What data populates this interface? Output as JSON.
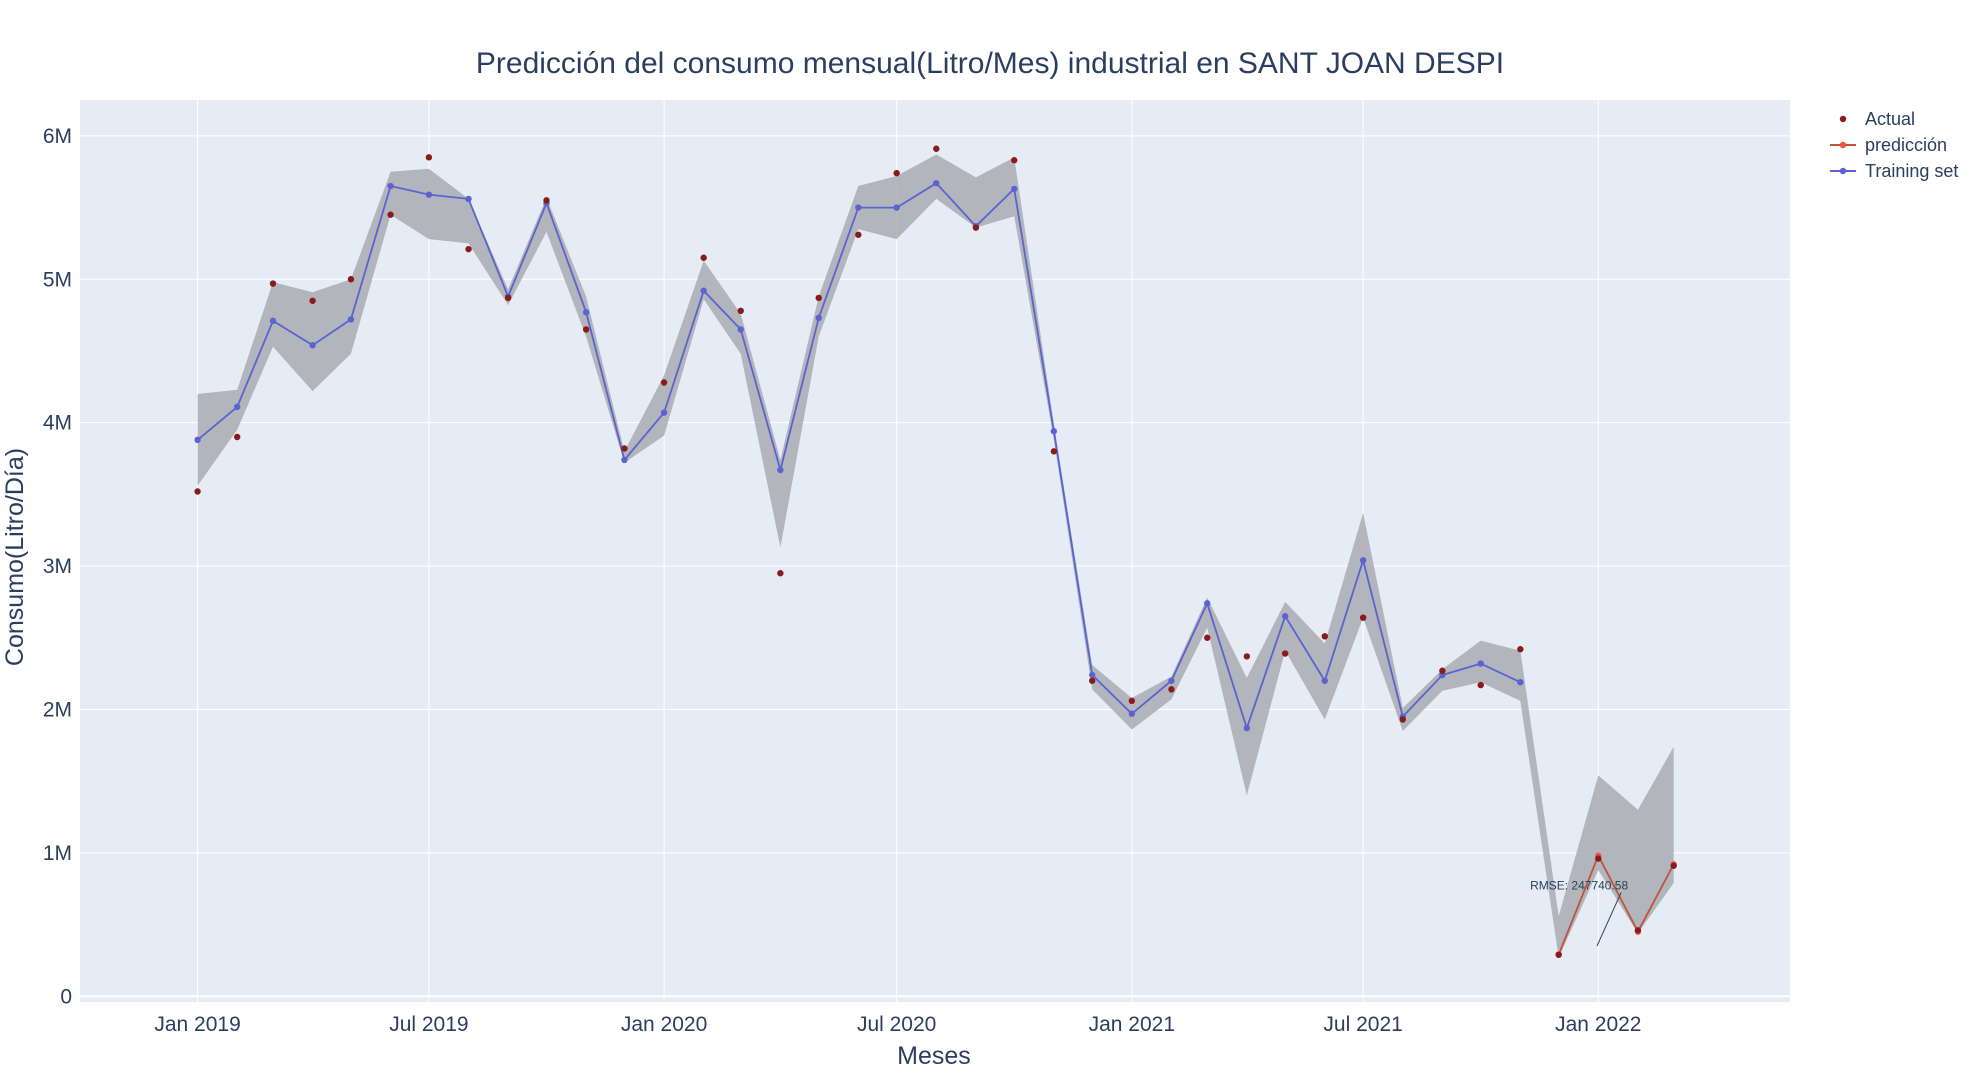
{
  "chart_data": {
    "type": "line",
    "title": "Predicción del consumo mensual(Litro/Mes) industrial en SANT JOAN DESPI",
    "xlabel": "Meses",
    "ylabel": "Consumo(Litro/Día)",
    "ylim": [
      -40000,
      6250000
    ],
    "xlim": [
      "2018-10-01",
      "2022-05-31"
    ],
    "x_ticks": [
      {
        "date": "2019-01-01",
        "label": "Jan 2019"
      },
      {
        "date": "2019-07-01",
        "label": "Jul 2019"
      },
      {
        "date": "2020-01-01",
        "label": "Jan 2020"
      },
      {
        "date": "2020-07-01",
        "label": "Jul 2020"
      },
      {
        "date": "2021-01-01",
        "label": "Jan 2021"
      },
      {
        "date": "2021-07-01",
        "label": "Jul 2021"
      },
      {
        "date": "2022-01-01",
        "label": "Jan 2022"
      }
    ],
    "y_ticks": [
      {
        "value": 0,
        "label": "0"
      },
      {
        "value": 1000000,
        "label": "1M"
      },
      {
        "value": 2000000,
        "label": "2M"
      },
      {
        "value": 3000000,
        "label": "3M"
      },
      {
        "value": 4000000,
        "label": "4M"
      },
      {
        "value": 5000000,
        "label": "5M"
      },
      {
        "value": 6000000,
        "label": "6M"
      }
    ],
    "grid": true,
    "legend_position": "top-right",
    "colors": {
      "plot_bg": "#e5ecf6",
      "grid": "#ffffff",
      "band": "#a9acb0",
      "actual": "#8b1a1a",
      "prediction": "#c0533a",
      "prediction_marker": "#ef553b",
      "training": "#5b63d0",
      "text": "#2a3f5f"
    },
    "series": [
      {
        "name": "Actual",
        "mode": "markers",
        "points": [
          [
            "2019-01-01",
            3520000
          ],
          [
            "2019-02-01",
            3900000
          ],
          [
            "2019-03-01",
            4970000
          ],
          [
            "2019-04-01",
            4850000
          ],
          [
            "2019-05-01",
            5000000
          ],
          [
            "2019-06-01",
            5450000
          ],
          [
            "2019-07-01",
            5850000
          ],
          [
            "2019-08-01",
            5210000
          ],
          [
            "2019-09-01",
            4870000
          ],
          [
            "2019-10-01",
            5550000
          ],
          [
            "2019-11-01",
            4650000
          ],
          [
            "2019-12-01",
            3820000
          ],
          [
            "2020-01-01",
            4280000
          ],
          [
            "2020-02-01",
            5150000
          ],
          [
            "2020-03-01",
            4780000
          ],
          [
            "2020-04-01",
            2950000
          ],
          [
            "2020-05-01",
            4870000
          ],
          [
            "2020-06-01",
            5310000
          ],
          [
            "2020-07-01",
            5740000
          ],
          [
            "2020-08-01",
            5910000
          ],
          [
            "2020-09-01",
            5360000
          ],
          [
            "2020-10-01",
            5830000
          ],
          [
            "2020-11-01",
            3800000
          ],
          [
            "2020-12-01",
            2200000
          ],
          [
            "2021-01-01",
            2060000
          ],
          [
            "2021-02-01",
            2140000
          ],
          [
            "2021-03-01",
            2500000
          ],
          [
            "2021-04-01",
            2370000
          ],
          [
            "2021-05-01",
            2390000
          ],
          [
            "2021-06-01",
            2510000
          ],
          [
            "2021-07-01",
            2640000
          ],
          [
            "2021-08-01",
            1930000
          ],
          [
            "2021-09-01",
            2270000
          ],
          [
            "2021-10-01",
            2170000
          ],
          [
            "2021-11-01",
            2420000
          ],
          [
            "2021-12-01",
            290000
          ],
          [
            "2022-01-01",
            960000
          ],
          [
            "2022-02-01",
            460000
          ],
          [
            "2022-03-01",
            910000
          ]
        ]
      },
      {
        "name": "predicción",
        "mode": "lines+markers",
        "points": [
          [
            "2021-12-01",
            290000
          ],
          [
            "2022-01-01",
            980000
          ],
          [
            "2022-02-01",
            450000
          ],
          [
            "2022-03-01",
            920000
          ]
        ]
      },
      {
        "name": "Training set",
        "mode": "lines+markers",
        "points": [
          [
            "2019-01-01",
            3880000
          ],
          [
            "2019-02-01",
            4110000
          ],
          [
            "2019-03-01",
            4710000
          ],
          [
            "2019-04-01",
            4540000
          ],
          [
            "2019-05-01",
            4720000
          ],
          [
            "2019-06-01",
            5650000
          ],
          [
            "2019-07-01",
            5590000
          ],
          [
            "2019-08-01",
            5560000
          ],
          [
            "2019-09-01",
            4880000
          ],
          [
            "2019-10-01",
            5530000
          ],
          [
            "2019-11-01",
            4770000
          ],
          [
            "2019-12-01",
            3740000
          ],
          [
            "2020-01-01",
            4070000
          ],
          [
            "2020-02-01",
            4920000
          ],
          [
            "2020-03-01",
            4650000
          ],
          [
            "2020-04-01",
            3670000
          ],
          [
            "2020-05-01",
            4730000
          ],
          [
            "2020-06-01",
            5500000
          ],
          [
            "2020-07-01",
            5500000
          ],
          [
            "2020-08-01",
            5670000
          ],
          [
            "2020-09-01",
            5370000
          ],
          [
            "2020-10-01",
            5630000
          ],
          [
            "2020-11-01",
            3940000
          ],
          [
            "2020-12-01",
            2240000
          ],
          [
            "2021-01-01",
            1970000
          ],
          [
            "2021-02-01",
            2200000
          ],
          [
            "2021-03-01",
            2740000
          ],
          [
            "2021-04-01",
            1870000
          ],
          [
            "2021-05-01",
            2650000
          ],
          [
            "2021-06-01",
            2200000
          ],
          [
            "2021-07-01",
            3040000
          ],
          [
            "2021-08-01",
            1950000
          ],
          [
            "2021-09-01",
            2240000
          ],
          [
            "2021-10-01",
            2320000
          ],
          [
            "2021-11-01",
            2190000
          ]
        ]
      }
    ],
    "confidence_band": {
      "points": [
        [
          "2019-01-01",
          3560000,
          4200000
        ],
        [
          "2019-02-01",
          3950000,
          4230000
        ],
        [
          "2019-03-01",
          4530000,
          4980000
        ],
        [
          "2019-04-01",
          4220000,
          4910000
        ],
        [
          "2019-05-01",
          4480000,
          5000000
        ],
        [
          "2019-06-01",
          5450000,
          5750000
        ],
        [
          "2019-07-01",
          5280000,
          5770000
        ],
        [
          "2019-08-01",
          5250000,
          5560000
        ],
        [
          "2019-09-01",
          4820000,
          4930000
        ],
        [
          "2019-10-01",
          5330000,
          5570000
        ],
        [
          "2019-11-01",
          4600000,
          4880000
        ],
        [
          "2019-12-01",
          3720000,
          3800000
        ],
        [
          "2020-01-01",
          3910000,
          4330000
        ],
        [
          "2020-02-01",
          4860000,
          5130000
        ],
        [
          "2020-03-01",
          4480000,
          4760000
        ],
        [
          "2020-04-01",
          3130000,
          3740000
        ],
        [
          "2020-05-01",
          4600000,
          4880000
        ],
        [
          "2020-06-01",
          5350000,
          5650000
        ],
        [
          "2020-07-01",
          5280000,
          5720000
        ],
        [
          "2020-08-01",
          5560000,
          5870000
        ],
        [
          "2020-09-01",
          5360000,
          5710000
        ],
        [
          "2020-10-01",
          5440000,
          5850000
        ],
        [
          "2020-11-01",
          3880000,
          3990000
        ],
        [
          "2020-12-01",
          2140000,
          2310000
        ],
        [
          "2021-01-01",
          1860000,
          2080000
        ],
        [
          "2021-02-01",
          2070000,
          2230000
        ],
        [
          "2021-03-01",
          2570000,
          2780000
        ],
        [
          "2021-04-01",
          1400000,
          2220000
        ],
        [
          "2021-05-01",
          2410000,
          2750000
        ],
        [
          "2021-06-01",
          1930000,
          2460000
        ],
        [
          "2021-07-01",
          2640000,
          3370000
        ],
        [
          "2021-08-01",
          1850000,
          2010000
        ],
        [
          "2021-09-01",
          2130000,
          2280000
        ],
        [
          "2021-10-01",
          2190000,
          2480000
        ],
        [
          "2021-11-01",
          2060000,
          2410000
        ],
        [
          "2021-12-01",
          270000,
          560000
        ],
        [
          "2022-01-01",
          880000,
          1540000
        ],
        [
          "2022-02-01",
          440000,
          1300000
        ],
        [
          "2022-03-01",
          790000,
          1740000
        ]
      ]
    },
    "annotations": [
      {
        "text": "RMSE: 247740.58",
        "x": "2021-12-17",
        "y": 780000,
        "arrow_to_x": "2021-12-31",
        "arrow_to_y": 560000
      }
    ]
  }
}
